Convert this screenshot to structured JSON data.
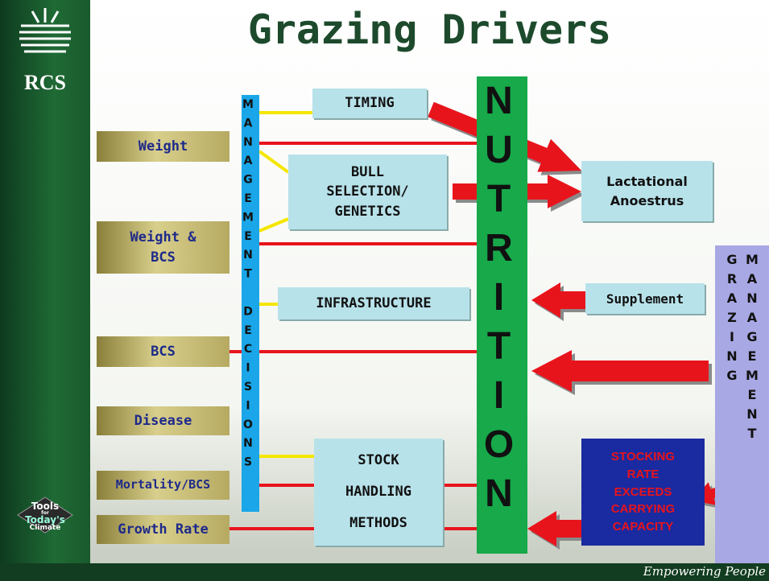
{
  "title": "Grazing Drivers",
  "logo": {
    "text": "RCS"
  },
  "badge": {
    "lines": [
      "Tools",
      "for",
      "Today's",
      "Climate"
    ]
  },
  "footer": "Empowering People",
  "outcomes": [
    {
      "lines": [
        "Weight"
      ]
    },
    {
      "lines": [
        "Weight &",
        "BCS"
      ]
    },
    {
      "lines": [
        "BCS"
      ]
    },
    {
      "lines": [
        "Disease"
      ]
    },
    {
      "lines": [
        "Mortality/BCS"
      ]
    },
    {
      "lines": [
        "Growth Rate"
      ]
    }
  ],
  "management_decisions": "MANAGEMENT DECISIONS",
  "nutrition": "NUTRITION",
  "drivers": [
    {
      "lines": [
        "TIMING"
      ]
    },
    {
      "lines": [
        "BULL",
        "SELECTION/",
        "GENETICS"
      ]
    },
    {
      "lines": [
        "INFRASTRUCTURE"
      ]
    },
    {
      "lines": [
        "STOCK",
        "HANDLING",
        "METHODS"
      ]
    }
  ],
  "lactational": {
    "lines": [
      "Lactational",
      "Anoestrus"
    ]
  },
  "supplement": "Supplement",
  "stocking": {
    "lines": [
      "STOCKING",
      "RATE",
      "EXCEEDS",
      "CARRYING",
      "CAPACITY"
    ]
  },
  "grazing_management": {
    "columns": [
      "GRAZING",
      "MANAGEMENT"
    ]
  }
}
